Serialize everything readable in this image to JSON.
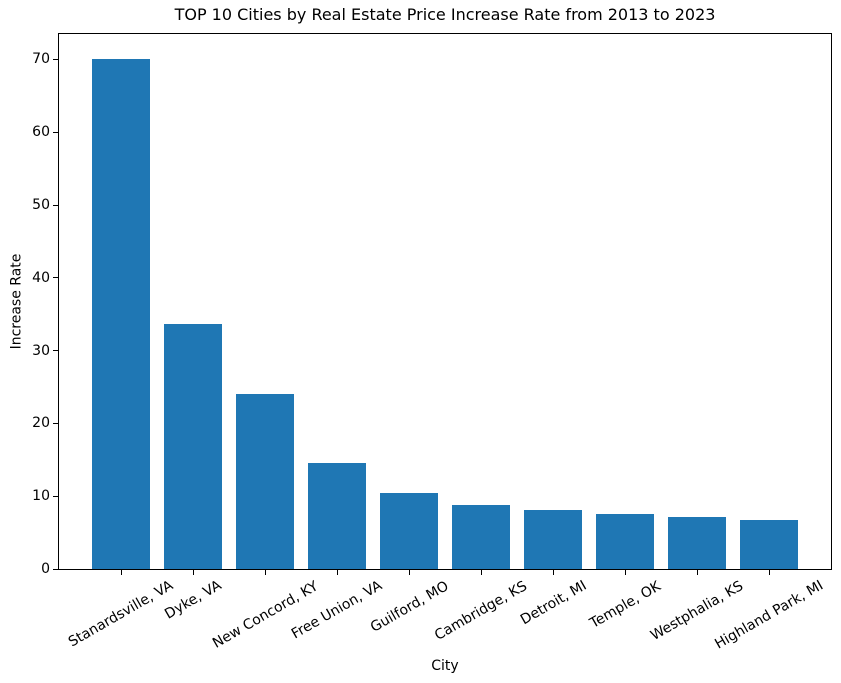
{
  "chart_data": {
    "type": "bar",
    "title": "TOP 10 Cities by Real Estate Price Increase Rate from 2013 to 2023",
    "xlabel": "City",
    "ylabel": "Increase Rate",
    "categories": [
      "Stanardsville, VA",
      "Dyke, VA",
      "New Concord, KY",
      "Free Union, VA",
      "Guilford, MO",
      "Cambridge, KS",
      "Detroit, MI",
      "Temple, OK",
      "Westphalia, KS",
      "Highland Park, MI"
    ],
    "values": [
      70.0,
      33.7,
      24.0,
      14.5,
      10.4,
      8.8,
      8.1,
      7.5,
      7.1,
      6.7
    ],
    "ylim": [
      0,
      73.5
    ],
    "yticks": [
      0,
      10,
      20,
      30,
      40,
      50,
      60,
      70
    ],
    "bar_color": "#1f77b4",
    "grid": false,
    "legend": "none",
    "x_tick_rotation_deg": 30
  }
}
